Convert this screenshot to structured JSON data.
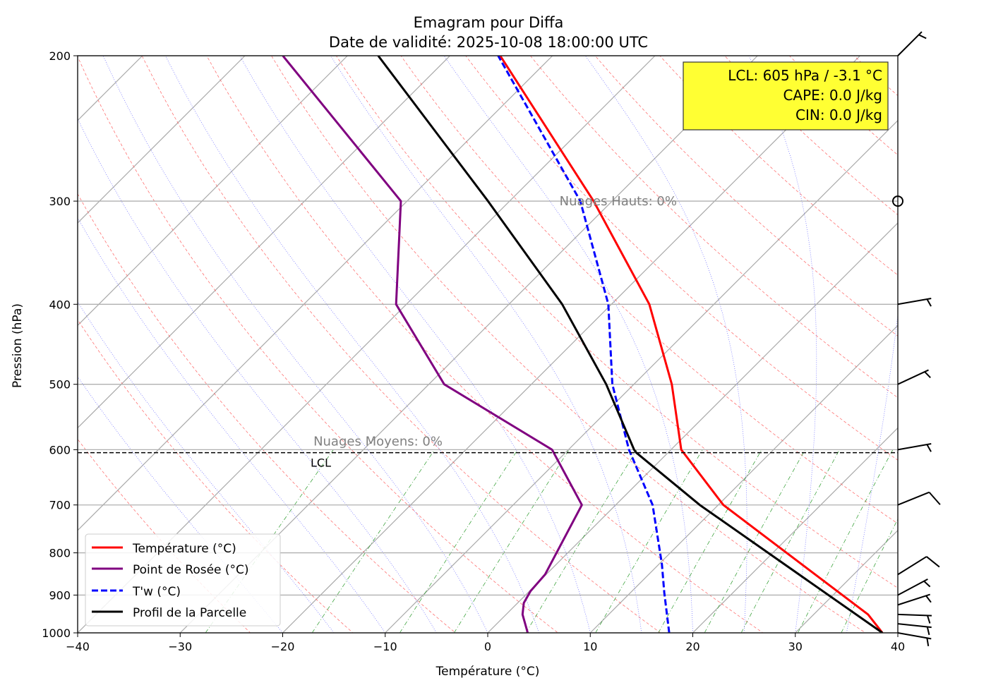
{
  "chart_data": {
    "type": "line",
    "subtype": "skew-T emagram",
    "title_line1": "Emagram pour Diffa",
    "title_line2": "Date de validité: 2025-10-08 18:00:00 UTC",
    "xlabel": "Température (°C)",
    "ylabel": "Pression (hPa)",
    "xlim": [
      -40,
      40
    ],
    "ylim": [
      1000,
      200
    ],
    "yscale": "log",
    "x_ticks": [
      "−40",
      "−30",
      "−20",
      "−10",
      "0",
      "10",
      "20",
      "30",
      "40"
    ],
    "x_tick_values": [
      -40,
      -30,
      -20,
      -10,
      0,
      10,
      20,
      30,
      40
    ],
    "y_ticks": [
      "1000",
      "900",
      "800",
      "700",
      "600",
      "500",
      "400",
      "300",
      "200"
    ],
    "y_tick_values": [
      1000,
      900,
      800,
      700,
      600,
      500,
      400,
      300,
      200
    ],
    "grid": true,
    "legend_position": "lower-left",
    "series": [
      {
        "name": "Température (°C)",
        "color": "#ff0000",
        "style": "solid",
        "p": [
          1000,
          950,
          700,
          600,
          500,
          400,
          300,
          200
        ],
        "t": [
          38.5,
          35.3,
          10.5,
          1.0,
          -6.3,
          -16.3,
          -31.8,
          -55.1
        ]
      },
      {
        "name": "Point de Rosée (°C)",
        "color": "#800080",
        "style": "solid",
        "p": [
          1000,
          950,
          920,
          890,
          850,
          700,
          600,
          500,
          400,
          300,
          200
        ],
        "t": [
          3.9,
          1.6,
          0.6,
          0.1,
          -0.1,
          -3.3,
          -11.6,
          -28.5,
          -41.0,
          -50.6,
          -76.3
        ]
      },
      {
        "name": "T'w (°C)",
        "color": "#0000ff",
        "style": "dashed",
        "p": [
          1000,
          894,
          826,
          700,
          600,
          500,
          400,
          300,
          200
        ],
        "t": [
          17.7,
          13.3,
          10.3,
          3.6,
          -4.1,
          -12.1,
          -20.3,
          -33.1,
          -55.3
        ]
      },
      {
        "name": "Profil de la Parcelle",
        "color": "#000000",
        "style": "solid",
        "p": [
          1000,
          700,
          605,
          600,
          500,
          400,
          300,
          200
        ],
        "t": [
          38.5,
          8.2,
          -3.1,
          -3.6,
          -12.7,
          -24.8,
          -42.1,
          -67.0
        ]
      }
    ],
    "lcl": {
      "label": "LCL",
      "pressure": 605
    },
    "annotations": [
      {
        "text": "Nuages Hauts: 0%",
        "pressure": 300,
        "temp_axis": 7
      },
      {
        "text": "Nuages Moyens: 0%",
        "pressure": 600,
        "temp_axis": -17
      }
    ],
    "info_box": {
      "line1": "LCL: 605 hPa / -3.1 °C",
      "line2": "CAPE: 0.0 J/kg",
      "line3": "CIN: 0.0 J/kg",
      "background": "#ffff33"
    },
    "wind_barbs": [
      {
        "p": 200,
        "dir": 45,
        "kt": 5
      },
      {
        "p": 300,
        "dir": 0,
        "kt": 0
      },
      {
        "p": 400,
        "dir": 80,
        "kt": 5
      },
      {
        "p": 500,
        "dir": 65,
        "kt": 5
      },
      {
        "p": 600,
        "dir": 80,
        "kt": 5
      },
      {
        "p": 700,
        "dir": 68,
        "kt": 10
      },
      {
        "p": 850,
        "dir": 58,
        "kt": 10
      },
      {
        "p": 900,
        "dir": 62,
        "kt": 5
      },
      {
        "p": 925,
        "dir": 72,
        "kt": 5
      },
      {
        "p": 950,
        "dir": 92,
        "kt": 5
      },
      {
        "p": 975,
        "dir": 96,
        "kt": 5
      },
      {
        "p": 1000,
        "dir": 100,
        "kt": 5
      }
    ]
  }
}
